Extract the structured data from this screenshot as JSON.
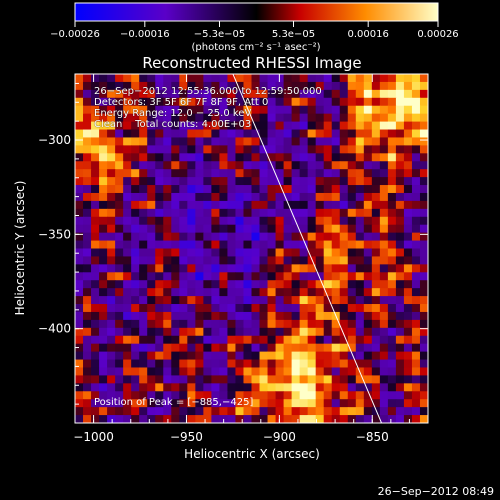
{
  "chart_data": {
    "type": "heatmap",
    "title": "Reconstructed RHESSI Image",
    "xlabel": "Heliocentric X (arcsec)",
    "ylabel": "Heliocentric Y (arcsec)",
    "xlim": [
      -1010,
      -820
    ],
    "ylim": [
      -450,
      -265
    ],
    "xticks": [
      -1000,
      -950,
      -900,
      -850
    ],
    "xtick_labels": [
      "−1000",
      "−950",
      "−900",
      "−850"
    ],
    "yticks": [
      -300,
      -350,
      -400
    ],
    "ytick_labels": [
      "−300",
      "−350",
      "−400"
    ],
    "colorbar": {
      "range": [
        -0.00026,
        0.00026
      ],
      "ticks": [
        -0.00026,
        -0.00016,
        -5.3e-05,
        5.3e-05,
        0.00016,
        0.00026
      ],
      "tick_labels": [
        "−0.00026",
        "−0.00016",
        "−5.3e−05",
        "5.3e−05",
        "0.00016",
        "0.00026"
      ],
      "unit_label": "(photons cm⁻² s⁻¹ asec⁻²)"
    },
    "limb_line": {
      "x": [
        -925,
        -845
      ],
      "y": [
        -265,
        -450
      ]
    },
    "peak_position": [
      -885,
      -425
    ]
  },
  "annotations": {
    "time_range": "26−Sep−2012 12:55:36.000 to 12:59:50.000",
    "detectors": "Detectors: 3F 5F 6F 7F 8F 9F, Att 0",
    "energy_range": "Energy Range: 12.0 − 25.0 keV",
    "method": "Clean    Total counts: 4.00E+03",
    "peak": "Position of Peak = [−885,−425]"
  },
  "footer_timestamp": "26−Sep−2012 08:49"
}
